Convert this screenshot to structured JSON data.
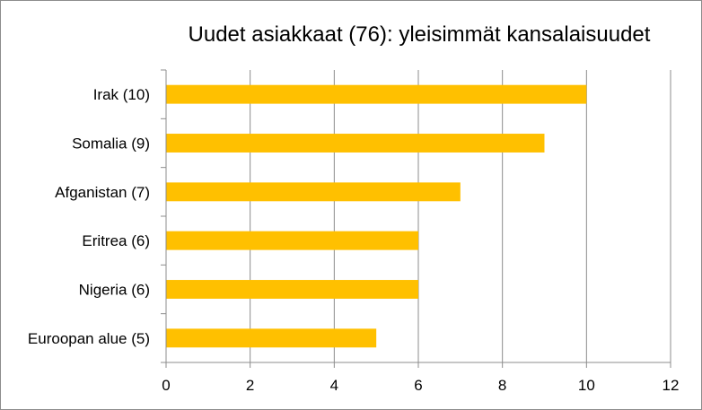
{
  "chart_data": {
    "type": "bar",
    "orientation": "horizontal",
    "title": "Uudet asiakkaat (76): yleisimmät kansalaisuudet",
    "categories": [
      "Irak (10)",
      "Somalia (9)",
      "Afganistan (7)",
      "Eritrea (6)",
      "Nigeria (6)",
      "Euroopan alue (5)"
    ],
    "values": [
      10,
      9,
      7,
      6,
      6,
      5
    ],
    "xlim": [
      0,
      12
    ],
    "x_ticks": [
      "0",
      "2",
      "4",
      "6",
      "8",
      "10",
      "12"
    ],
    "xlabel": "",
    "ylabel": "",
    "grid": "vertical",
    "legend": "none",
    "colors": {
      "bar": "#FFC000",
      "grid": "#8c8c8c",
      "axis": "#8c8c8c",
      "text": "#000000"
    }
  }
}
